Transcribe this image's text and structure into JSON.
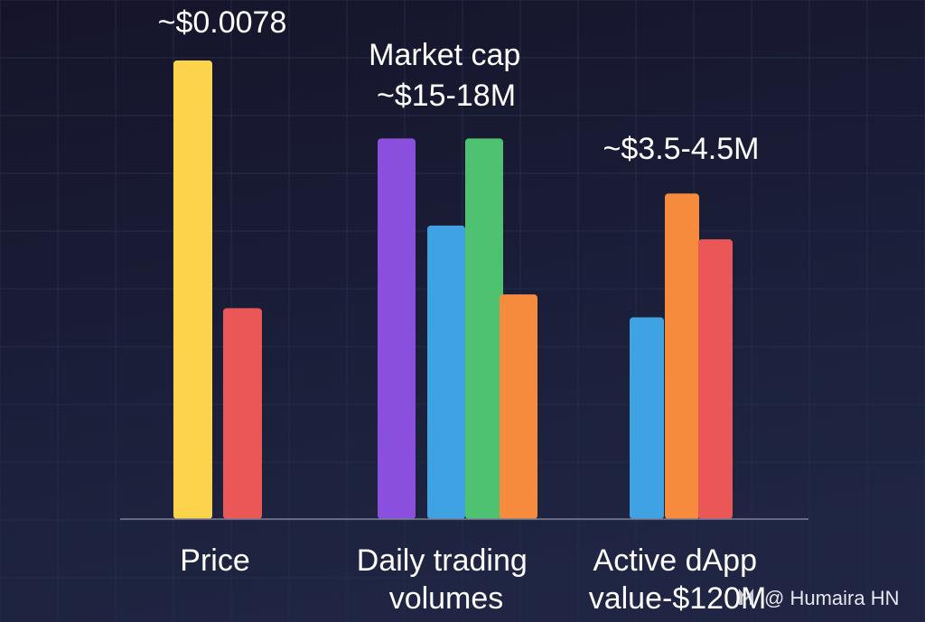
{
  "chart_data": {
    "type": "bar",
    "title": "",
    "xlabel": "",
    "ylabel": "",
    "grid": true,
    "legend": "none",
    "ylim": [
      0,
      100
    ],
    "groups": [
      {
        "category_lines": [
          "Price"
        ],
        "bars": [
          {
            "value": 100,
            "color": "#fcd44c"
          },
          {
            "value": 46,
            "color": "#eb5757"
          }
        ]
      },
      {
        "category_lines": [
          "Daily trading",
          "volumes"
        ],
        "bars": [
          {
            "value": 83,
            "color": "#8a4fdd"
          },
          {
            "value": 64,
            "color": "#3ea2e3"
          },
          {
            "value": 83,
            "color": "#4fc272"
          },
          {
            "value": 49,
            "color": "#f68b3d"
          }
        ]
      },
      {
        "category_lines": [
          "Active dApp",
          "value-$120M"
        ],
        "bars": [
          {
            "value": 44,
            "color": "#3ea2e3"
          },
          {
            "value": 71,
            "color": "#f68b3d"
          },
          {
            "value": 61,
            "color": "#eb5757"
          }
        ]
      }
    ],
    "annotations": [
      {
        "lines": [
          "~$0.0078"
        ]
      },
      {
        "lines": [
          "Market cap",
          "~$15-18M"
        ]
      },
      {
        "lines": [
          "~$3.5-4.5M"
        ]
      }
    ]
  },
  "watermark": {
    "text": "@ Humaira HN",
    "icon": "logo-icon"
  },
  "colors": {
    "background_top": "#15142a",
    "background_bottom": "#1f2542",
    "grid": "#232c4a",
    "axis": "#7d8096",
    "text": "#ffffff"
  }
}
